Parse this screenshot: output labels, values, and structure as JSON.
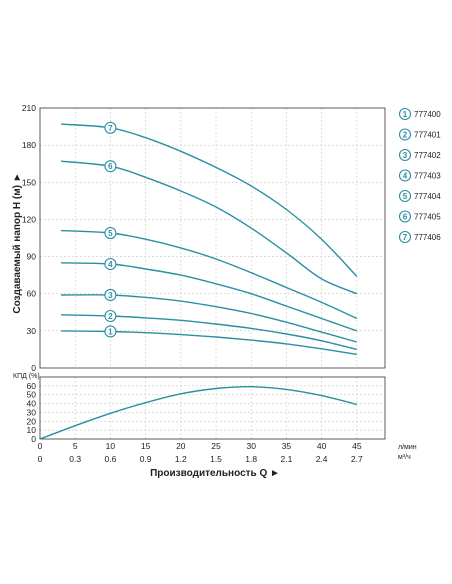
{
  "chart_data": [
    {
      "type": "line",
      "ylabel": "Создаваемый напор H (м) ►",
      "xlabel": "Производительность Q ►",
      "x_unit_lpm": "л/мин",
      "x_unit_m3h": "м³/ч",
      "xlim": [
        0,
        49
      ],
      "ylim": [
        0,
        210
      ],
      "x_ticks": [
        0,
        5,
        10,
        15,
        20,
        25,
        30,
        35,
        40,
        45
      ],
      "x_ticks_m3h": [
        "0",
        "0.3",
        "0.6",
        "0.9",
        "1.2",
        "1.5",
        "1.8",
        "2.1",
        "2.4",
        "2.7"
      ],
      "y_ticks": [
        0,
        30,
        60,
        90,
        120,
        150,
        180,
        210
      ],
      "grid": true,
      "legend_position": "right",
      "series": [
        {
          "name": "777400",
          "label": "1",
          "x": [
            3,
            10,
            15,
            20,
            25,
            30,
            35,
            40,
            45
          ],
          "y": [
            30,
            29.5,
            28.5,
            27,
            25,
            22.5,
            19.5,
            15.5,
            11
          ]
        },
        {
          "name": "777401",
          "label": "2",
          "x": [
            3,
            10,
            15,
            20,
            25,
            30,
            35,
            40,
            45
          ],
          "y": [
            43,
            42,
            40.5,
            38.5,
            35.5,
            32,
            27.5,
            22,
            15
          ]
        },
        {
          "name": "777402",
          "label": "3",
          "x": [
            3,
            10,
            15,
            20,
            25,
            30,
            35,
            40,
            45
          ],
          "y": [
            59,
            59,
            57,
            54,
            49.5,
            44,
            37,
            29,
            21
          ]
        },
        {
          "name": "777403",
          "label": "4",
          "x": [
            3,
            10,
            15,
            20,
            25,
            30,
            35,
            40,
            45
          ],
          "y": [
            85,
            84,
            80,
            75,
            68,
            60,
            50,
            40,
            30
          ]
        },
        {
          "name": "777404",
          "label": "5",
          "x": [
            3,
            10,
            15,
            20,
            25,
            30,
            35,
            40,
            45
          ],
          "y": [
            111,
            109,
            104,
            97,
            88,
            77,
            65,
            53,
            40
          ]
        },
        {
          "name": "777405",
          "label": "6",
          "x": [
            3,
            10,
            15,
            20,
            25,
            30,
            35,
            40,
            45
          ],
          "y": [
            167,
            163,
            154,
            143,
            130,
            113,
            93,
            72,
            60
          ]
        },
        {
          "name": "777406",
          "label": "7",
          "x": [
            3,
            10,
            15,
            20,
            25,
            30,
            35,
            40,
            45
          ],
          "y": [
            197,
            194,
            186,
            175,
            162,
            147,
            128,
            104,
            74
          ]
        }
      ]
    },
    {
      "type": "line",
      "ylabel": "КПД (%)",
      "xlim": [
        0,
        49
      ],
      "ylim": [
        0,
        70
      ],
      "y_ticks": [
        0,
        10,
        20,
        30,
        40,
        50,
        60
      ],
      "grid": true,
      "series": [
        {
          "x": [
            0,
            5,
            10,
            15,
            20,
            25,
            30,
            35,
            40,
            45
          ],
          "y": [
            0,
            15,
            29,
            41,
            51,
            57,
            59,
            56,
            49,
            39
          ]
        }
      ]
    }
  ]
}
